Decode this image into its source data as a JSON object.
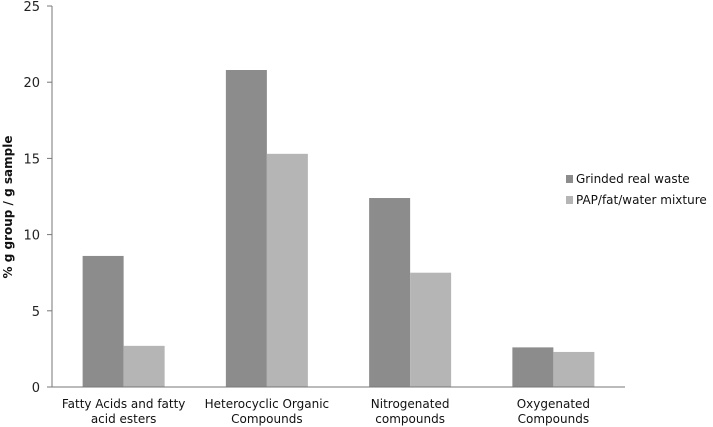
{
  "chart_data": {
    "type": "bar",
    "title": "",
    "xlabel": "",
    "ylabel": "%  g group / g sample",
    "ylim": [
      0,
      25
    ],
    "yticks": [
      0,
      5,
      10,
      15,
      20,
      25
    ],
    "grid": false,
    "legend_position": "right",
    "categories": [
      [
        "Fatty Acids and fatty",
        "acid esters"
      ],
      [
        "Heterocyclic  Organic",
        "Compounds"
      ],
      [
        "Nitrogenated",
        "compounds"
      ],
      [
        "Oxygenated",
        "Compounds"
      ]
    ],
    "series": [
      {
        "name": "Grinded real waste",
        "color": "#8c8c8c",
        "values": [
          8.6,
          20.8,
          12.4,
          2.6
        ]
      },
      {
        "name": "PAP/fat/water mixture",
        "color": "#b5b5b5",
        "values": [
          2.7,
          15.3,
          7.5,
          2.3
        ]
      }
    ]
  }
}
